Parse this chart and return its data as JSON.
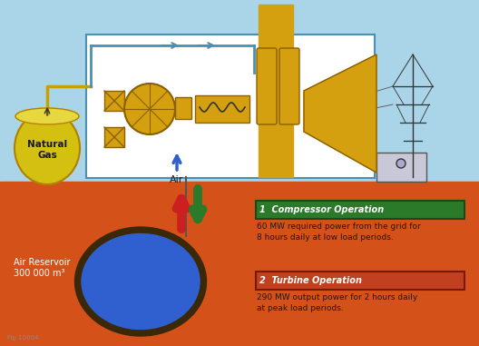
{
  "sky_color": "#aad4e8",
  "ground_color": "#d4521a",
  "building_bg": "#ffffff",
  "building_border": "#4a90b0",
  "chimney_color": "#d4a010",
  "natural_gas_tank_color": "#d4c010",
  "natural_gas_tank_border": "#b08000",
  "natural_gas_label": "Natural\nGas",
  "air_label": "Air",
  "reservoir_label": "Air Reservoir\n300 000 m³",
  "reservoir_color": "#3060d0",
  "reservoir_border": "#3a2a0a",
  "compressor_box_color": "#2a7a2a",
  "compressor_label": "1  Compressor Operation",
  "compressor_text": "60 MW required power from the grid for\n8 hours daily at low load periods.",
  "turbine_box_color": "#c04020",
  "turbine_label": "2  Turbine Operation",
  "turbine_text": "290 MW output power for 2 hours daily\nat peak load periods.",
  "pipe_color": "#4a90b0",
  "yellow_equipment_color": "#d4a010",
  "arrow_up_color": "#cc2020",
  "arrow_down_color": "#2a7a2a",
  "text_color": "#1a1a1a",
  "fig_width": 5.28,
  "fig_height": 3.81,
  "dpi": 100
}
